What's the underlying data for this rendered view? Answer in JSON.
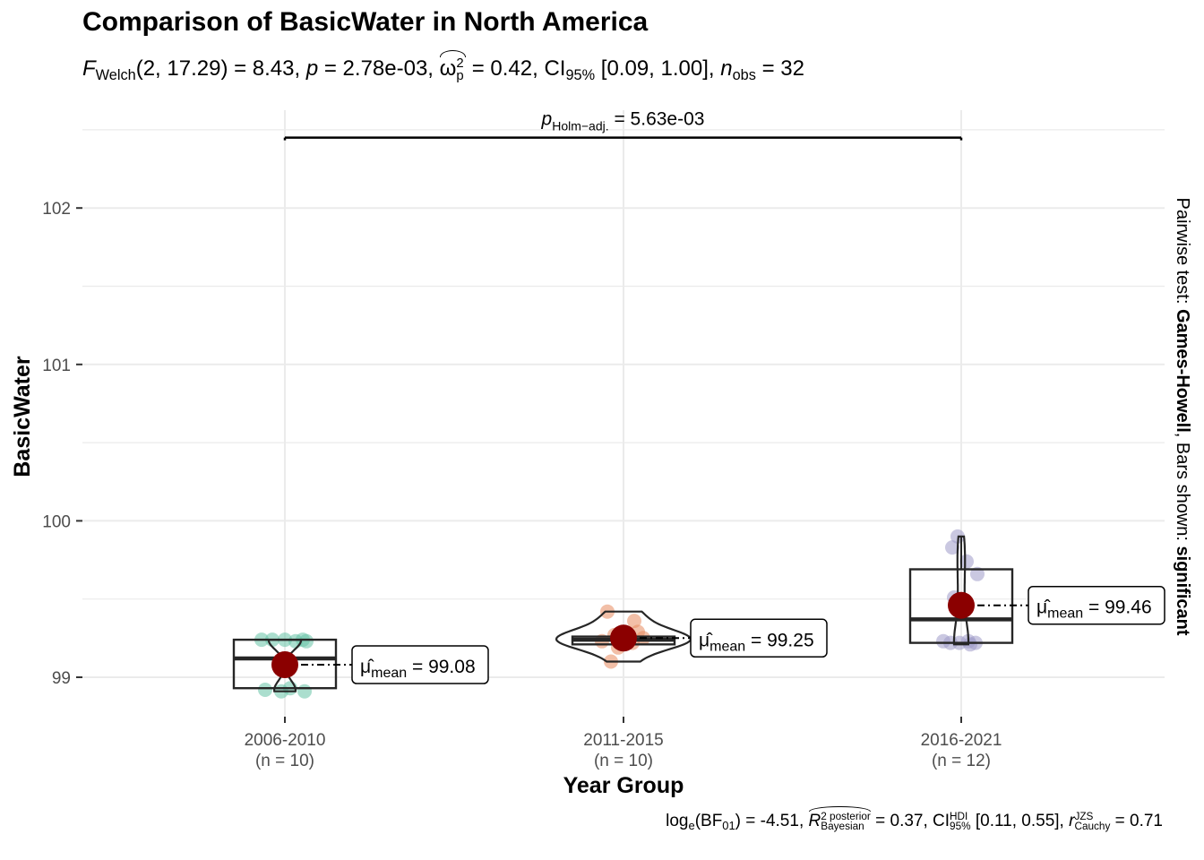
{
  "chart_data": {
    "type": "box-violin",
    "title": "Comparison of BasicWater in North America",
    "subtitle": {
      "stat_name": "F",
      "stat_sub": "Welch",
      "stat_args": "(2, 17.29)",
      "stat_value": " = 8.43, ",
      "p_label": "p",
      "p_value": " = 2.78e-03, ",
      "effect_symbol": "ω",
      "effect_sup": "2",
      "effect_sub": "p",
      "effect_value": " = 0.42, CI",
      "ci_sub": "95%",
      "ci_value": " [0.09, 1.00], ",
      "n_label": "n",
      "n_sub": "obs",
      "n_value": " = 32"
    },
    "caption": {
      "bf_prefix": "log",
      "bf_sub": "e",
      "bf_open": "(BF",
      "bf_sub2": "01",
      "bf_value": ") = -4.51, ",
      "r_symbol": "R",
      "r_sup": "2 posterior",
      "r_sub": "Bayesian",
      "r_value": " = 0.37, CI",
      "hdi_sup": "HDI",
      "hdi_sub": "95%",
      "hdi_value": " [0.11, 0.55], ",
      "cauchy_symbol": "r",
      "cauchy_sup": "JZS",
      "cauchy_sub": "Cauchy",
      "cauchy_value": " = 0.71"
    },
    "xlabel": "Year Group",
    "ylabel": "BasicWater",
    "ylim": [
      98.85,
      102.5
    ],
    "yticks": [
      99,
      100,
      101,
      102
    ],
    "grid": true,
    "right_label": {
      "prefix": "Pairwise test: ",
      "test": "Games-Howell",
      "middle": ", Bars shown: ",
      "shown": "significant"
    },
    "pairwise": {
      "from": 0,
      "to": 2,
      "y": 102.45,
      "label_symbol": "p",
      "label_sub": "Holm−adj.",
      "label_value": " = 5.63e-03"
    },
    "groups": [
      {
        "label": "2006-2010",
        "n_label": "(n = 10)",
        "color": "#66c2a5",
        "mean": 99.08,
        "mean_label": "99.08",
        "box": {
          "q1": 98.93,
          "median": 99.12,
          "q3": 99.24,
          "lower": 98.93,
          "upper": 99.24
        },
        "points": [
          99.24,
          99.24,
          99.24,
          99.23,
          99.24,
          99.23,
          98.92,
          98.91,
          98.93,
          98.91
        ]
      },
      {
        "label": "2011-2015",
        "n_label": "(n = 10)",
        "color": "#e78a5f",
        "mean": 99.25,
        "mean_label": "99.25",
        "box": {
          "q1": 99.21,
          "median": 99.24,
          "q3": 99.26,
          "lower": 99.21,
          "upper": 99.26
        },
        "points": [
          99.42,
          99.36,
          99.29,
          99.27,
          99.25,
          99.24,
          99.23,
          99.22,
          99.19,
          99.1
        ]
      },
      {
        "label": "2016-2021",
        "n_label": "(n = 12)",
        "color": "#9e9ac8",
        "mean": 99.46,
        "mean_label": "99.46",
        "box": {
          "q1": 99.22,
          "median": 99.37,
          "q3": 99.69,
          "lower": 99.22,
          "upper": 99.9
        },
        "points": [
          99.9,
          99.83,
          99.74,
          99.66,
          99.51,
          99.46,
          99.23,
          99.22,
          99.22,
          99.21,
          99.22,
          99.23
        ]
      }
    ],
    "mean_point_color": "#8b0000"
  }
}
